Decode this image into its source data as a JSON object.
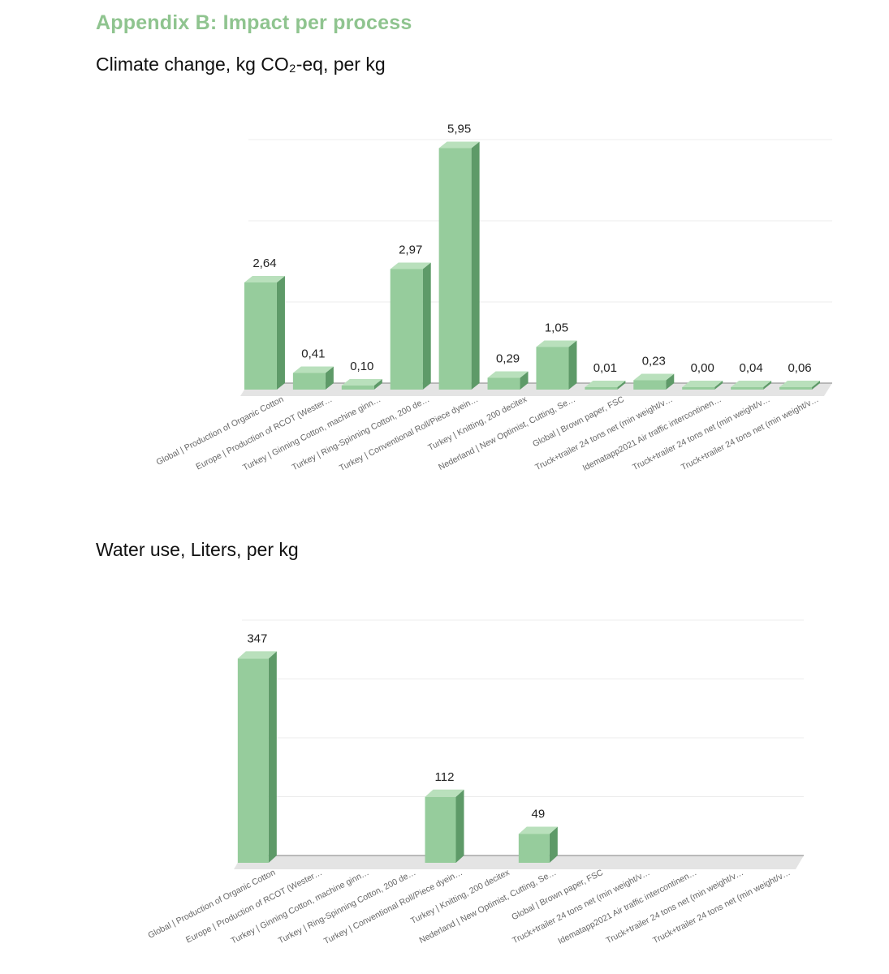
{
  "page": {
    "heading": "Appendix B: Impact per process"
  },
  "colors": {
    "bar_front": "#96cc9c",
    "bar_side": "#5e9a68",
    "bar_top": "#b9e0bc",
    "grid": "#ececec",
    "floor": "#bdbdbd",
    "heading": "#8fc48f"
  },
  "chart_data": [
    {
      "type": "bar",
      "title": "Climate change, kg CO₂-eq, per kg",
      "categories": [
        "Global | Production of Organic Cotton",
        "Europe | Production of RCOT (Wester…",
        "Turkey | Ginning Cotton, machine ginn…",
        "Turkey | Ring-Spinning Cotton, 200 de…",
        "Turkey | Conventional Roll/Piece dyein…",
        "Turkey | Knitting, 200 decitex",
        "Nederland | New Optimist, Cutting, Se…",
        "Global | Brown paper, FSC",
        "Truck+trailer 24 tons net (min weight/v…",
        "Idematapp2021 Air traffic intercontinen…",
        "Truck+trailer 24 tons net (min weight/v…",
        "Truck+trailer 24 tons net (min weight/v…"
      ],
      "values": [
        2.64,
        0.41,
        0.1,
        2.97,
        5.95,
        0.29,
        1.05,
        0.01,
        0.23,
        0.0,
        0.04,
        0.06
      ],
      "labels": [
        "2,64",
        "0,41",
        "0,10",
        "2,97",
        "5,95",
        "0,29",
        "1,05",
        "0,01",
        "0,23",
        "0,00",
        "0,04",
        "0,06"
      ],
      "ylim": [
        0,
        6
      ],
      "grid": true
    },
    {
      "type": "bar",
      "title": "Water use, Liters, per kg",
      "categories": [
        "Global | Production of Organic Cotton",
        "Europe | Production of RCOT (Wester…",
        "Turkey | Ginning Cotton, machine ginn…",
        "Turkey | Ring-Spinning Cotton, 200 de…",
        "Turkey | Conventional Roll/Piece dyein…",
        "Turkey | Knitting, 200 decitex",
        "Nederland | New Optimist, Cutting, Se…",
        "Global | Brown paper, FSC",
        "Truck+trailer 24 tons net (min weight/v…",
        "Idematapp2021 Air traffic intercontinen…",
        "Truck+trailer 24 tons net (min weight/v…",
        "Truck+trailer 24 tons net (min weight/v…"
      ],
      "values": [
        347,
        0,
        0,
        0,
        112,
        0,
        49,
        0,
        0,
        0,
        0,
        0
      ],
      "labels": [
        "347",
        "",
        "",
        "",
        "112",
        "",
        "49",
        "",
        "",
        "",
        "",
        ""
      ],
      "ylim": [
        0,
        400
      ],
      "grid": true
    }
  ]
}
